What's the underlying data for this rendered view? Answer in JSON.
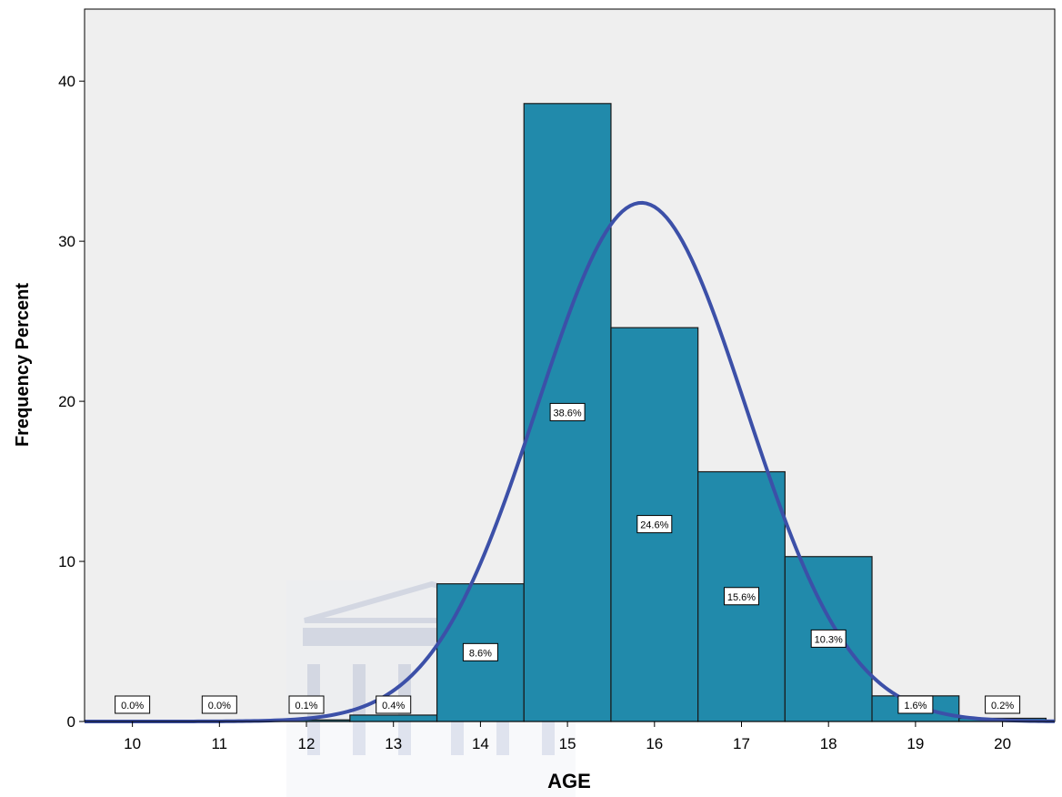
{
  "chart_data": {
    "type": "bar",
    "xlabel": "AGE",
    "ylabel": "Frequency Percent",
    "xlim": [
      9.45,
      20.6
    ],
    "ylim": [
      0,
      44.5
    ],
    "x_ticks": [
      10,
      11,
      12,
      13,
      14,
      15,
      16,
      17,
      18,
      19,
      20
    ],
    "y_ticks": [
      0,
      10,
      20,
      30,
      40
    ],
    "categories": [
      10,
      11,
      12,
      13,
      14,
      15,
      16,
      17,
      18,
      19,
      20
    ],
    "values": [
      0.0,
      0.0,
      0.1,
      0.4,
      8.6,
      38.6,
      24.6,
      15.6,
      10.3,
      1.6,
      0.2
    ],
    "data_labels": [
      "0.0%",
      "0.0%",
      "0.1%",
      "0.4%",
      "8.6%",
      "38.6%",
      "24.6%",
      "15.6%",
      "10.3%",
      "1.6%",
      "0.2%"
    ],
    "normal_curve": {
      "mean": 15.85,
      "sd": 1.2,
      "peak": 32.4
    },
    "grid": false,
    "colors": {
      "plot_background": "#efefef",
      "bar_fill": "#218aab",
      "bar_stroke": "#1a1a1a",
      "curve": "#3c50a8"
    }
  }
}
